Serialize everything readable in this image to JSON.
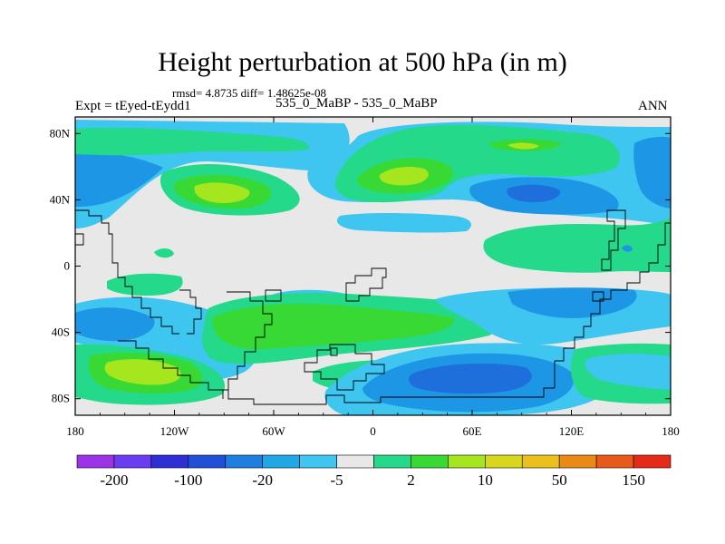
{
  "header": {
    "title": "Height perturbation at 500 hPa (in m)",
    "stats": "rmsd= 4.8735 diff= 1.48625e-08",
    "experiment": "Expt = tEyed-tEydd1",
    "difference_label": "535_0_MaBP - 535_0_MaBP",
    "season": "ANN"
  },
  "chart_data": {
    "type": "heatmap",
    "title": "Height perturbation at 500 hPa (in m)",
    "x_ticks": [
      "180",
      "120W",
      "60W",
      "0",
      "60E",
      "120E",
      "180"
    ],
    "y_ticks": [
      "80N",
      "40N",
      "0",
      "40S",
      "80S"
    ],
    "xlim": [
      -180,
      180
    ],
    "ylim": [
      -90,
      90
    ],
    "colorbar": {
      "labels": [
        "-200",
        "-100",
        "-20",
        "-5",
        "2",
        "10",
        "50",
        "150"
      ],
      "colors": [
        "#9c33e6",
        "#6a3ef0",
        "#2f2fd6",
        "#2150d8",
        "#1e7fe0",
        "#21a6e6",
        "#3fc6f0",
        "#e8e8e8",
        "#24d98a",
        "#38d935",
        "#a6e61e",
        "#d8d61e",
        "#ecc01a",
        "#ea8a14",
        "#e85a1a",
        "#e62a1a"
      ]
    },
    "contour_colors": {
      "background": "#e8e8e8",
      "light_blue": "#3fc6f0",
      "blue": "#1e96e6",
      "deep_blue": "#1e6fdc",
      "teal_green": "#24d98a",
      "green": "#38d935",
      "yellow_green": "#a6e61e"
    }
  }
}
